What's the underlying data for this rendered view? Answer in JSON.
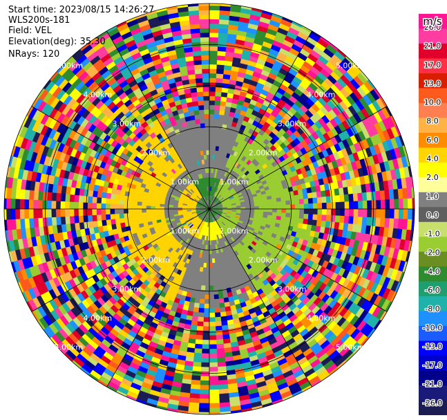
{
  "header": {
    "start_time": "Start time: 2023/08/15 14:26:27",
    "instrument": "WLS200s-181",
    "field": "Field: VEL",
    "elevation": "Elevation(deg): 35.30",
    "nrays": "NRays: 120"
  },
  "colorbar": {
    "unit": "m/s",
    "ticks": [
      "26.0",
      "21.0",
      "17.0",
      "13.0",
      "10.0",
      "8.0",
      "6.0",
      "4.0",
      "2.0",
      "1.0",
      "0.0",
      "-1.0",
      "-2.0",
      "-4.0",
      "-6.0",
      "-8.0",
      "-10.0",
      "-13.0",
      "-17.0",
      "-21.0",
      "-26.0",
      "-30.0"
    ],
    "colors": [
      "#ff1493",
      "#ff3ca0",
      "#e0002a",
      "#ff2f45",
      "#d91e00",
      "#ff5a1e",
      "#ff7f50",
      "#ffb347",
      "#ff8c00",
      "#ffd400",
      "#ffff00",
      "#ffff99",
      "#808080",
      "#5f5f5f",
      "#c8e06b",
      "#9acd32",
      "#6b8e23",
      "#2e8b2e",
      "#1f9f6f",
      "#20b2aa",
      "#1e90ff",
      "#1a5cff",
      "#0000ff",
      "#0000cc",
      "#00008b",
      "#1a1a7a",
      "#1c1c55"
    ]
  },
  "chart_data": {
    "type": "heatmap",
    "subtype": "radar PPI (polar) of radial velocity",
    "field": "VEL",
    "units": "m/s",
    "nrays": 120,
    "elevation_deg": 35.3,
    "range_ring_labels_km": [
      "1.00km",
      "2.00km",
      "3.00km",
      "4.00km",
      "5.00km"
    ],
    "range_ring_label_text": [
      "1.00km",
      "2.00km",
      "3.00km",
      "4.00km",
      "5.00km"
    ],
    "color_scale_bounds": [
      26.0,
      21.0,
      17.0,
      13.0,
      10.0,
      8.0,
      6.0,
      4.0,
      2.0,
      1.0,
      0.0,
      -1.0,
      -2.0,
      -4.0,
      -6.0,
      -8.0,
      -10.0,
      -13.0,
      -17.0,
      -21.0,
      -26.0,
      -30.0
    ],
    "near_field_pattern": "gray ~0 m/s ring near center; yellow (+2..+4 m/s) west and south; green (-2..-4 m/s) north-east and east; beyond ~2.5 km noisy multicolor"
  }
}
